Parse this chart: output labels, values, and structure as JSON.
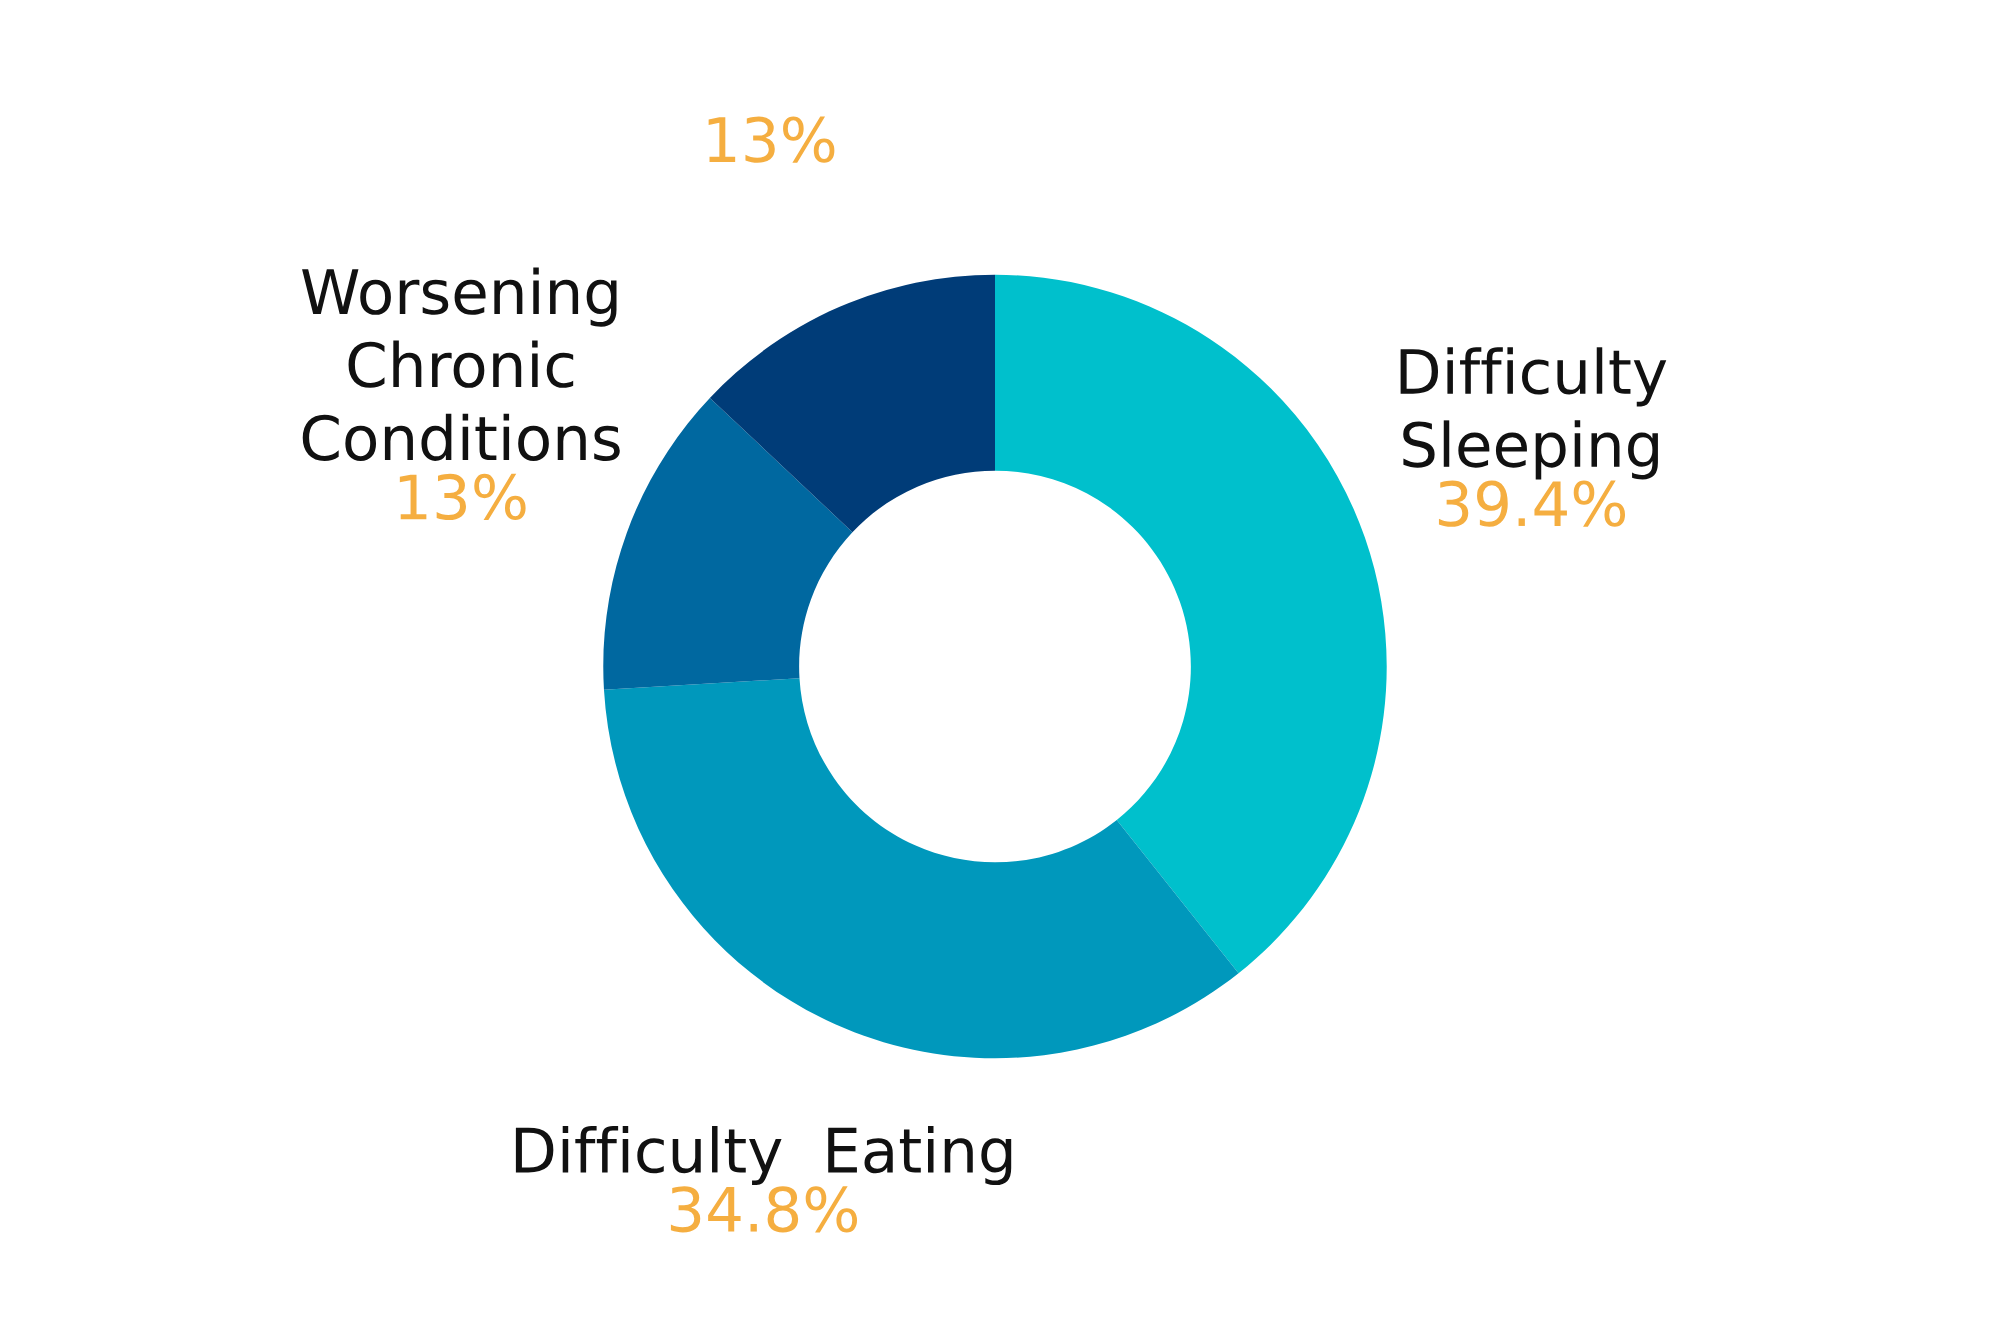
{
  "chart_data": {
    "type": "donut",
    "categories": [
      "Difficulty\nSleeping",
      "Difficulty  Eating",
      "Worsening\nChronic\nConditions",
      null
    ],
    "values": [
      39.4,
      34.8,
      13,
      13
    ],
    "value_labels": [
      "39.4%",
      "34.8%",
      "13%",
      "13%"
    ],
    "colors": [
      "#00c0cc",
      "#0098bc",
      "#0068a0",
      "#003c78"
    ]
  }
}
